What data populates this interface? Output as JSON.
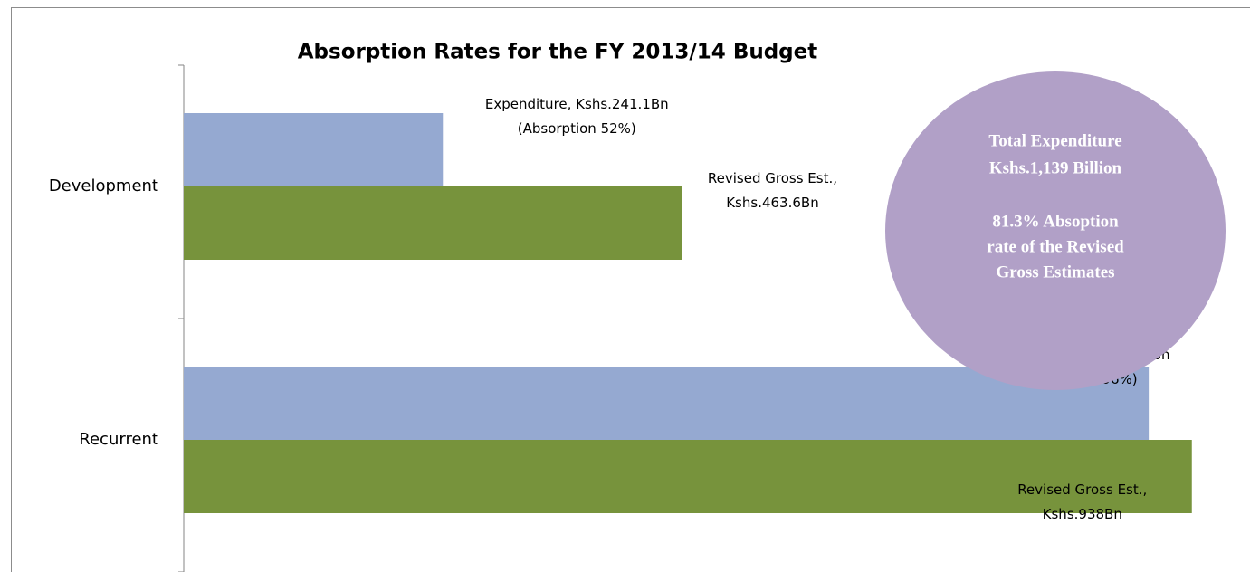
{
  "chart_data": {
    "type": "barh",
    "title": "Absorption Rates for the FY 2013/14 Budget",
    "categories": [
      "Development",
      "Recurrent"
    ],
    "series": [
      {
        "name": "Expenditure",
        "color": "#95a9d1",
        "values": [
          241.1,
          897.9
        ],
        "value_labels": [
          [
            "Expenditure, Kshs.241.1Bn",
            "(Absorption  52%)"
          ],
          [
            "Expenditure, Kshs.897.9Bn",
            "(Absorption 96%)"
          ]
        ]
      },
      {
        "name": "Revised Gross Est.",
        "color": "#77933c",
        "values": [
          463.6,
          938
        ],
        "value_labels": [
          [
            "Revised Gross Est.,",
            "Kshs.463.6Bn"
          ],
          [
            "Revised Gross Est.,",
            "Kshs.938Bn"
          ]
        ]
      }
    ],
    "xlim": [
      0,
      950
    ],
    "annotations": [
      [
        "Total Expenditure",
        "Kshs.1,139 Billion"
      ],
      [
        "81.3% Absoption",
        "rate of the Revised",
        "Gross Estimates"
      ]
    ],
    "annotation_color": "#b1a0c7"
  }
}
